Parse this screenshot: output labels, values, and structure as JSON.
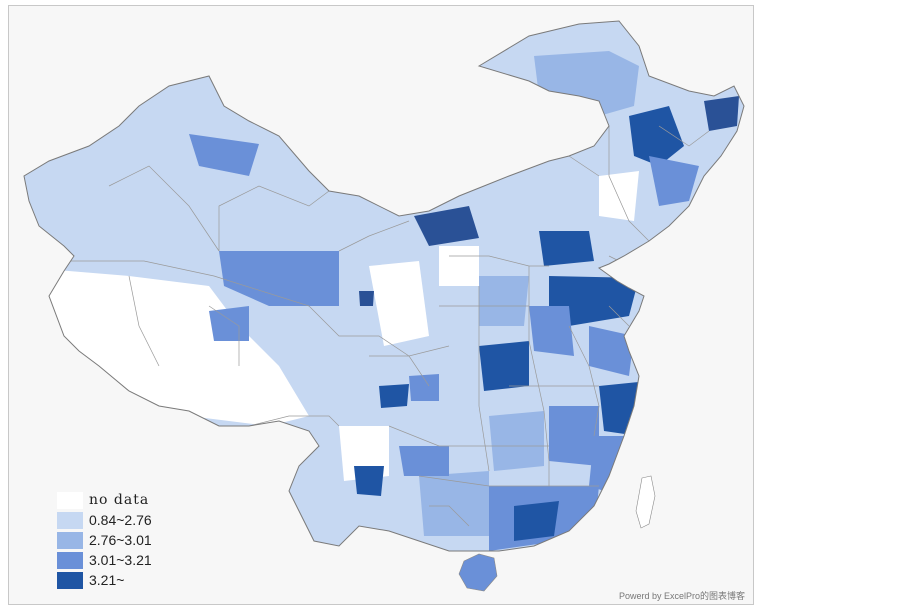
{
  "legend": {
    "items": [
      {
        "label": "no data",
        "color": "#ffffff"
      },
      {
        "label": "0.84~2.76",
        "color": "#c6d8f2"
      },
      {
        "label": "2.76~3.01",
        "color": "#98b6e6"
      },
      {
        "label": "3.01~3.21",
        "color": "#6a90d8"
      },
      {
        "label": "3.21~",
        "color": "#1f55a4"
      }
    ]
  },
  "watermark": "Powerd by ExcelPro的图表博客",
  "colors": {
    "boundary": "#8a8a8a",
    "sea": "#f7f7f7"
  }
}
